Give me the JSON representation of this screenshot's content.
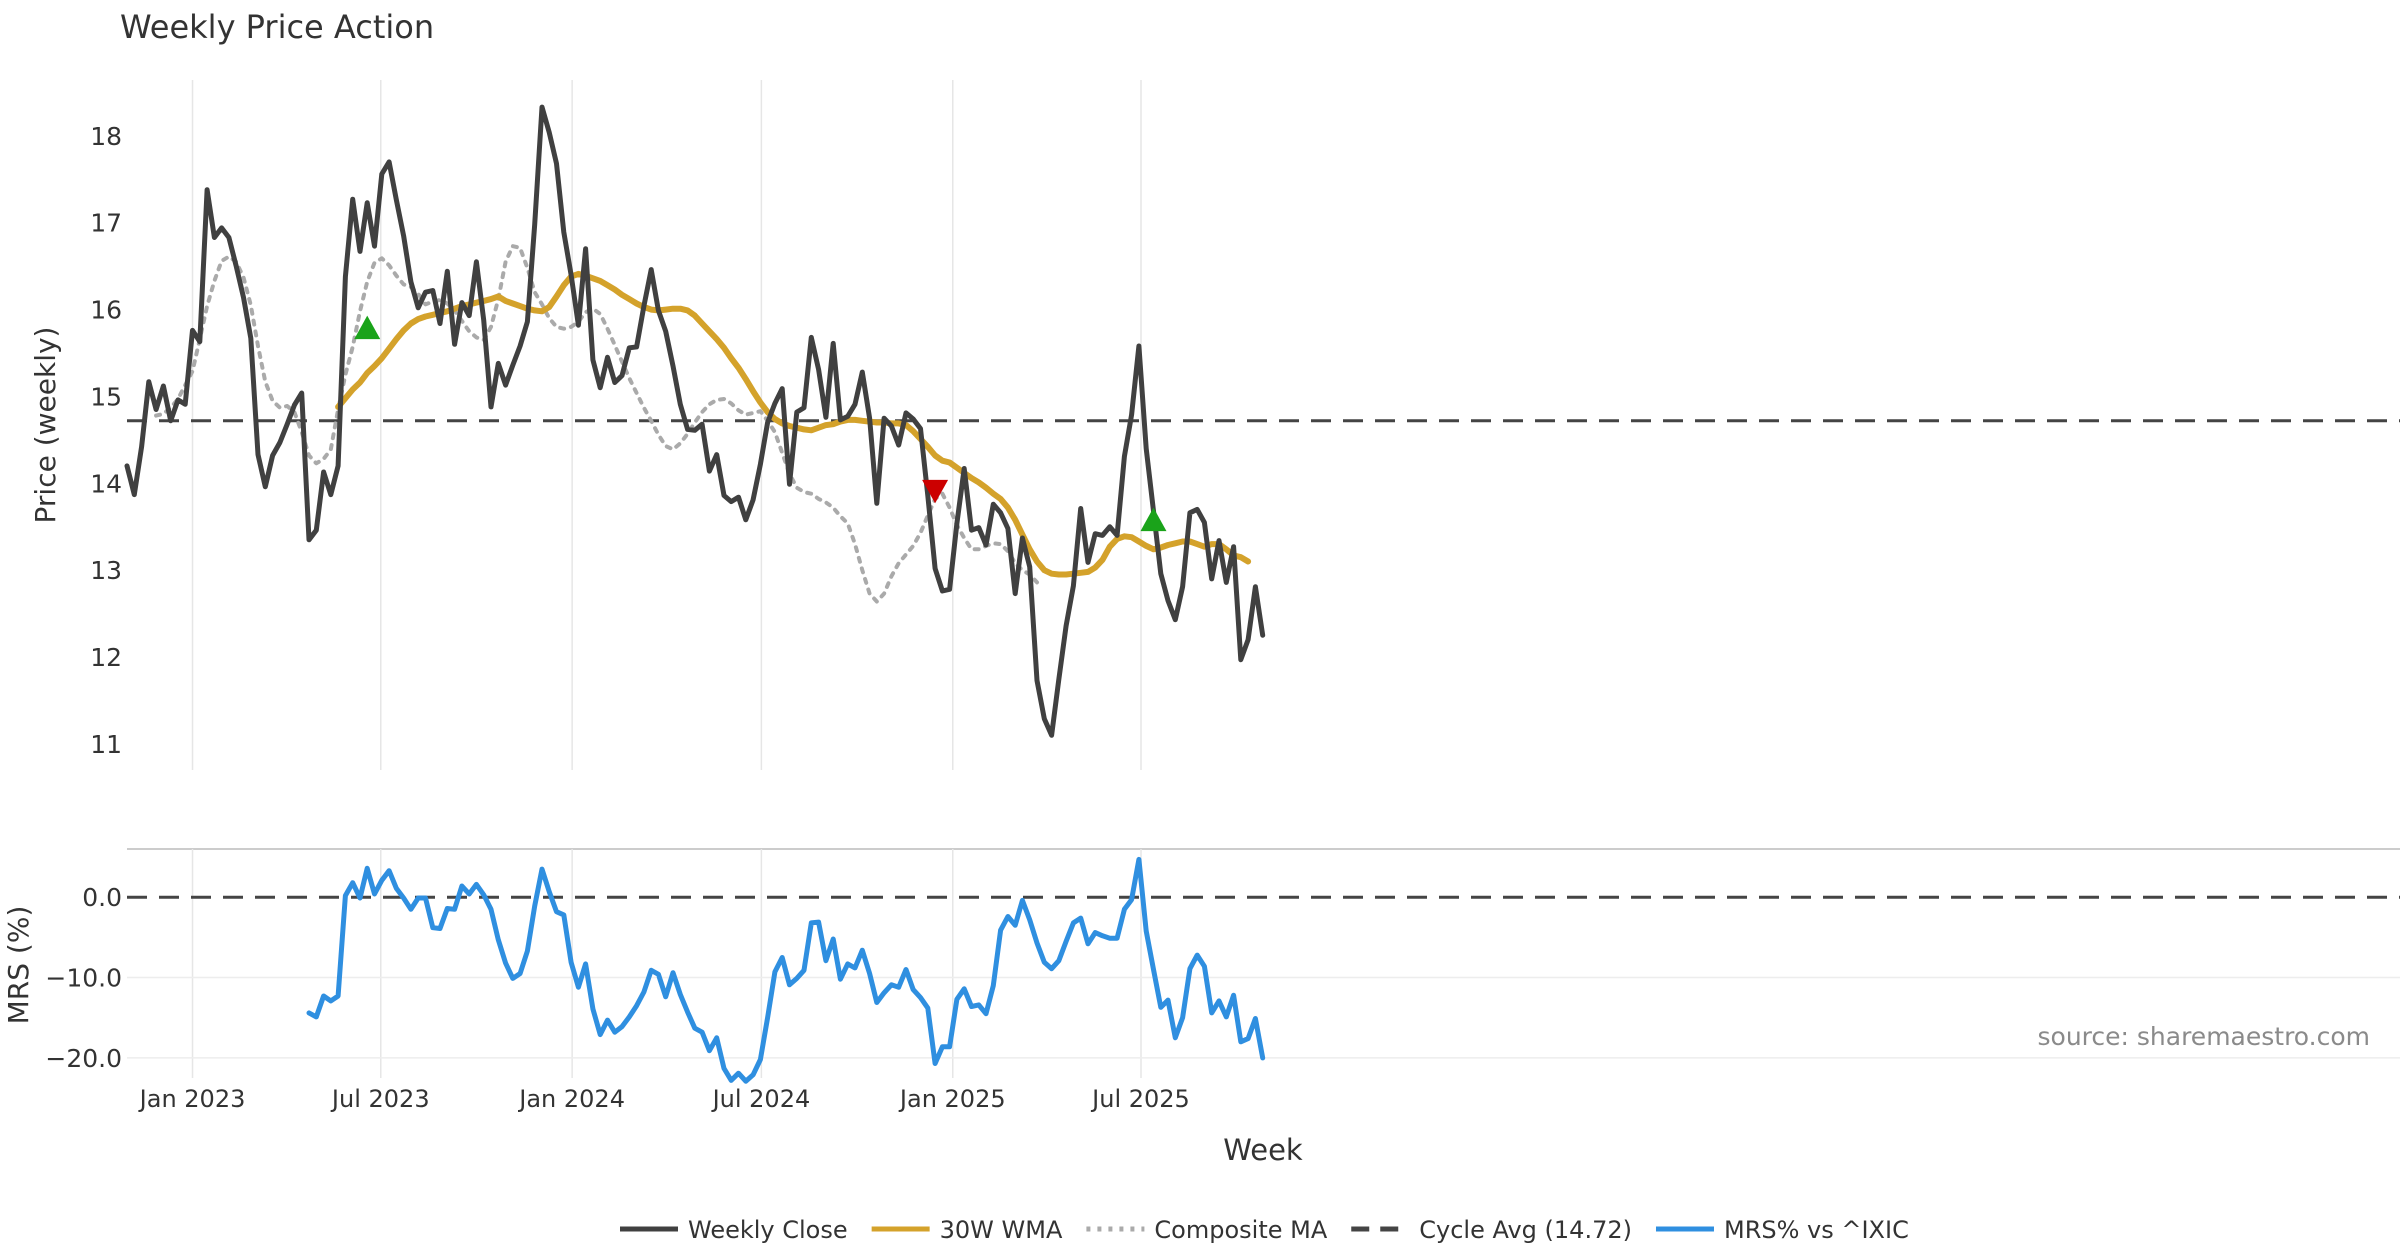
{
  "chart_data": [
    {
      "type": "line",
      "title": "Weekly Price Action",
      "xlabel": "",
      "ylabel": "Price (weekly)",
      "ylim": [
        10.7,
        18.7
      ],
      "yticks": [
        11,
        12,
        13,
        14,
        15,
        16,
        17,
        18
      ],
      "x_ticks": [
        {
          "label": "Jan 2023",
          "date": "2023-01-01"
        },
        {
          "label": "Jul 2023",
          "date": "2023-07-01"
        },
        {
          "label": "Jan 2024",
          "date": "2024-01-01"
        },
        {
          "label": "Jul 2024",
          "date": "2024-07-01"
        },
        {
          "label": "Jan 2025",
          "date": "2025-01-01"
        },
        {
          "label": "Jul 2025",
          "date": "2025-07-01"
        }
      ],
      "start_date": "2022-10-30",
      "series": [
        {
          "name": "Weekly Close",
          "color": "#404040",
          "style": "solid",
          "start_index": 0,
          "values": [
            14.2,
            13.87,
            14.42,
            15.17,
            14.85,
            15.12,
            14.72,
            14.96,
            14.91,
            15.76,
            15.63,
            17.38,
            16.83,
            16.94,
            16.83,
            16.5,
            16.14,
            15.67,
            14.33,
            13.96,
            14.32,
            14.47,
            14.68,
            14.9,
            15.04,
            13.35,
            13.46,
            14.13,
            13.87,
            14.2,
            16.38,
            17.27,
            16.67,
            17.23,
            16.73,
            17.56,
            17.7,
            17.26,
            16.85,
            16.32,
            16.02,
            16.2,
            16.22,
            15.84,
            16.44,
            15.6,
            16.08,
            15.93,
            16.55,
            15.88,
            14.88,
            15.38,
            15.13,
            15.36,
            15.58,
            15.86,
            16.98,
            18.33,
            18.04,
            17.68,
            16.89,
            16.4,
            15.82,
            16.7,
            15.42,
            15.1,
            15.45,
            15.16,
            15.24,
            15.56,
            15.57,
            16.04,
            16.46,
            15.99,
            15.75,
            15.35,
            14.91,
            14.62,
            14.61,
            14.68,
            14.14,
            14.33,
            13.86,
            13.79,
            13.84,
            13.58,
            13.81,
            14.22,
            14.7,
            14.92,
            15.09,
            13.99,
            14.82,
            14.87,
            15.68,
            15.31,
            14.76,
            15.61,
            14.73,
            14.77,
            14.91,
            15.28,
            14.75,
            13.77,
            14.75,
            14.66,
            14.44,
            14.81,
            14.74,
            14.63,
            13.86,
            13.02,
            12.76,
            12.78,
            13.54,
            14.17,
            13.46,
            13.49,
            13.29,
            13.76,
            13.66,
            13.48,
            12.73,
            13.37,
            13.04,
            11.73,
            11.29,
            11.1,
            11.74,
            12.36,
            12.82,
            13.71,
            13.09,
            13.42,
            13.4,
            13.5,
            13.4,
            14.31,
            14.79,
            15.58,
            14.4,
            13.68,
            12.96,
            12.65,
            12.43,
            12.81,
            13.66,
            13.7,
            13.55,
            12.9,
            13.34,
            12.86,
            13.27,
            11.97,
            12.2,
            12.81,
            12.25
          ]
        },
        {
          "name": "30W WMA",
          "color": "#d4a22b",
          "style": "solid",
          "start_index": 29,
          "values": [
            14.88,
            14.98,
            15.08,
            15.16,
            15.27,
            15.35,
            15.44,
            15.55,
            15.66,
            15.76,
            15.84,
            15.89,
            15.92,
            15.94,
            15.96,
            15.98,
            16.01,
            16.04,
            16.06,
            16.08,
            16.1,
            16.12,
            16.15,
            16.1,
            16.07,
            16.04,
            16.01,
            15.99,
            15.98,
            16.03,
            16.15,
            16.28,
            16.38,
            16.41,
            16.39,
            16.36,
            16.33,
            16.28,
            16.23,
            16.17,
            16.12,
            16.07,
            16.03,
            16.0,
            15.99,
            16.0,
            16.01,
            16.01,
            15.99,
            15.93,
            15.84,
            15.75,
            15.66,
            15.56,
            15.44,
            15.33,
            15.2,
            15.06,
            14.93,
            14.82,
            14.74,
            14.69,
            14.66,
            14.64,
            14.62,
            14.61,
            14.64,
            14.67,
            14.68,
            14.71,
            14.73,
            14.73,
            14.72,
            14.71,
            14.7,
            14.7,
            14.69,
            14.69,
            14.67,
            14.6,
            14.51,
            14.42,
            14.32,
            14.26,
            14.24,
            14.18,
            14.12,
            14.06,
            14.01,
            13.95,
            13.88,
            13.82,
            13.72,
            13.58,
            13.41,
            13.24,
            13.1,
            13.0,
            12.96,
            12.95,
            12.95,
            12.96,
            12.97,
            12.98,
            13.03,
            13.12,
            13.27,
            13.36,
            13.39,
            13.38,
            13.33,
            13.28,
            13.24,
            13.26,
            13.29,
            13.31,
            13.33,
            13.33,
            13.3,
            13.27,
            13.3,
            13.3,
            13.24,
            13.17,
            13.15,
            13.1
          ]
        },
        {
          "name": "Composite MA",
          "color": "#aaaaaa",
          "style": "dotted",
          "start_index": 4,
          "values": [
            14.78,
            14.8,
            14.87,
            14.97,
            15.13,
            15.29,
            15.66,
            16.04,
            16.33,
            16.56,
            16.61,
            16.55,
            16.37,
            16.05,
            15.58,
            15.17,
            14.95,
            14.87,
            14.89,
            14.82,
            14.59,
            14.32,
            14.23,
            14.28,
            14.39,
            14.85,
            15.25,
            15.57,
            15.98,
            16.32,
            16.54,
            16.59,
            16.51,
            16.39,
            16.29,
            16.26,
            16.18,
            16.06,
            16.09,
            16.11,
            16.07,
            15.99,
            15.87,
            15.75,
            15.68,
            15.65,
            15.8,
            16.12,
            16.55,
            16.73,
            16.71,
            16.48,
            16.2,
            16.06,
            15.9,
            15.8,
            15.78,
            15.8,
            15.86,
            15.97,
            16.01,
            15.95,
            15.78,
            15.59,
            15.4,
            15.21,
            15.04,
            14.87,
            14.72,
            14.56,
            14.43,
            14.39,
            14.46,
            14.57,
            14.7,
            14.82,
            14.91,
            14.96,
            14.97,
            14.92,
            14.84,
            14.79,
            14.81,
            14.83,
            14.72,
            14.59,
            14.35,
            14.11,
            13.95,
            13.9,
            13.88,
            13.82,
            13.78,
            13.72,
            13.62,
            13.54,
            13.3,
            13.0,
            12.73,
            12.64,
            12.73,
            12.93,
            13.08,
            13.18,
            13.28,
            13.43,
            13.63,
            13.82,
            13.88,
            13.72,
            13.52,
            13.37,
            13.24,
            13.24,
            13.28,
            13.31,
            13.3,
            13.22,
            13.08,
            13.0,
            12.95,
            12.86
          ]
        },
        {
          "name": "Cycle Avg (14.72)",
          "color": "#444444",
          "style": "dashed",
          "constant": 14.72
        }
      ],
      "markers": [
        {
          "type": "up",
          "index": 33,
          "value": 15.78,
          "color": "#1aa31a"
        },
        {
          "type": "down",
          "index": 111,
          "value": 13.92,
          "color": "#cc0000"
        },
        {
          "type": "up",
          "index": 141,
          "value": 13.57,
          "color": "#1aa31a"
        }
      ],
      "grid": true
    },
    {
      "type": "line",
      "title": "",
      "xlabel": "Week",
      "ylabel": "MRS (%)",
      "ylim": [
        -22.5,
        6
      ],
      "yticks": [
        0.0,
        -10.0,
        -20.0
      ],
      "ytick_labels": [
        "0.0",
        "−10.0",
        "−20.0"
      ],
      "reference_line": {
        "value": 0.0,
        "style": "dashed",
        "color": "#444444"
      },
      "series": [
        {
          "name": "MRS% vs ^IXIC",
          "color": "#2f8fe0",
          "style": "solid",
          "start_index": 25,
          "values": [
            -14.4,
            -14.9,
            -12.3,
            -12.9,
            -12.3,
            0.2,
            1.8,
            -0.1,
            3.6,
            0.4,
            2.1,
            3.3,
            1.1,
            -0.1,
            -1.5,
            -0.1,
            -0.1,
            -3.8,
            -3.9,
            -1.4,
            -1.5,
            1.4,
            0.4,
            1.6,
            0.3,
            -1.5,
            -5.3,
            -8.2,
            -10.1,
            -9.5,
            -6.7,
            -1.1,
            3.5,
            0.7,
            -1.8,
            -2.2,
            -8.1,
            -11.2,
            -8.3,
            -13.9,
            -17.1,
            -15.3,
            -16.8,
            -16.1,
            -14.9,
            -13.5,
            -11.8,
            -9.1,
            -9.6,
            -12.4,
            -9.4,
            -12.1,
            -14.3,
            -16.3,
            -16.8,
            -19.1,
            -17.5,
            -21.3,
            -22.8,
            -21.9,
            -22.9,
            -22.1,
            -20.2,
            -15.0,
            -9.3,
            -7.5,
            -10.9,
            -10.1,
            -9.1,
            -3.2,
            -3.1,
            -7.9,
            -5.2,
            -10.2,
            -8.3,
            -8.8,
            -6.6,
            -9.5,
            -13.1,
            -11.9,
            -10.9,
            -11.2,
            -9.0,
            -11.5,
            -12.5,
            -13.8,
            -20.7,
            -18.6,
            -18.6,
            -12.7,
            -11.4,
            -13.6,
            -13.4,
            -14.5,
            -11.0,
            -4.1,
            -2.4,
            -3.5,
            -0.4,
            -2.8,
            -5.7,
            -8.1,
            -8.9,
            -7.9,
            -5.5,
            -3.2,
            -2.6,
            -5.8,
            -4.4,
            -4.8,
            -5.1,
            -5.1,
            -1.5,
            -0.3,
            4.7,
            -4.2,
            -9.0,
            -13.7,
            -12.8,
            -17.5,
            -15.0,
            -8.9,
            -7.2,
            -8.6,
            -14.4,
            -12.9,
            -14.9,
            -12.2,
            -18.0,
            -17.6,
            -15.1,
            -20.0
          ]
        }
      ],
      "watermark": "source: sharemaestro.com"
    }
  ],
  "legend": [
    {
      "label": "Weekly Close",
      "color": "#404040",
      "style": "solid"
    },
    {
      "label": "30W WMA",
      "color": "#d4a22b",
      "style": "solid"
    },
    {
      "label": "Composite MA",
      "color": "#aaaaaa",
      "style": "dotted"
    },
    {
      "label": "Cycle Avg (14.72)",
      "color": "#444444",
      "style": "dashed"
    },
    {
      "label": "MRS% vs ^IXIC",
      "color": "#2f8fe0",
      "style": "solid"
    }
  ]
}
